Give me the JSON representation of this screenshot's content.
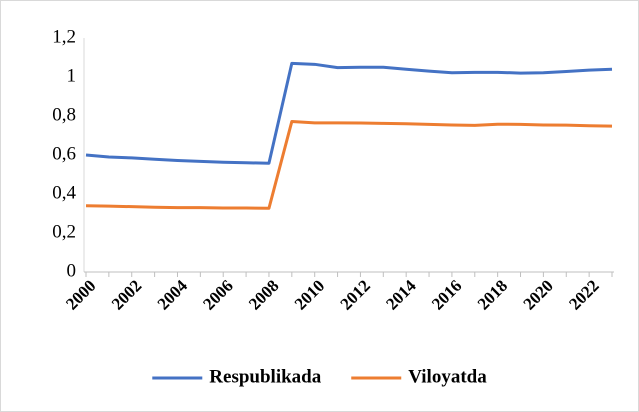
{
  "chart_data": {
    "type": "line",
    "categories": [
      "2000",
      null,
      "2002",
      null,
      "2004",
      null,
      "2006",
      null,
      "2008",
      null,
      "2010",
      null,
      "2012",
      null,
      "2014",
      null,
      "2016",
      null,
      "2018",
      null,
      "2020",
      null,
      "2022",
      null
    ],
    "series": [
      {
        "name": "Respublikada",
        "color": "#4472c4",
        "values": [
          0.6,
          0.59,
          0.585,
          0.578,
          0.572,
          0.567,
          0.563,
          0.56,
          0.558,
          1.07,
          1.065,
          1.048,
          1.05,
          1.05,
          1.04,
          1.03,
          1.022,
          1.024,
          1.024,
          1.02,
          1.022,
          1.028,
          1.035,
          1.04
        ]
      },
      {
        "name": "Viloyatda",
        "color": "#ed7d31",
        "values": [
          0.34,
          0.338,
          0.335,
          0.332,
          0.33,
          0.33,
          0.328,
          0.328,
          0.327,
          0.772,
          0.765,
          0.765,
          0.764,
          0.762,
          0.76,
          0.757,
          0.754,
          0.752,
          0.758,
          0.757,
          0.754,
          0.753,
          0.75,
          0.748
        ]
      }
    ],
    "ylim": [
      0,
      1.2
    ],
    "yticks": [
      0,
      {
        "value": 0.2,
        "label": "0,2"
      },
      {
        "value": 0.4,
        "label": "0,4"
      },
      {
        "value": 0.6,
        "label": "0,6"
      },
      {
        "value": 0.8,
        "label": "0,8"
      },
      1,
      {
        "value": 1.2,
        "label": "1,2"
      }
    ],
    "grid": false,
    "legend": "bottom"
  }
}
